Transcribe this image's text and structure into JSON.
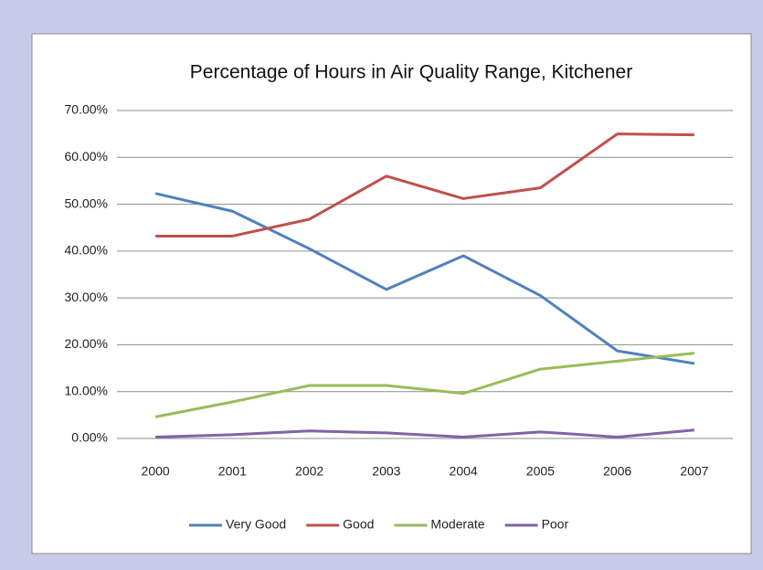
{
  "chart_data": {
    "type": "line",
    "title": "Percentage of Hours in Air Quality Range, Kitchener",
    "categories": [
      "2000",
      "2001",
      "2002",
      "2003",
      "2004",
      "2005",
      "2006",
      "2007"
    ],
    "series": [
      {
        "name": "Very Good",
        "color": "#4f81bd",
        "values": [
          52.3,
          48.5,
          40.5,
          31.8,
          39.0,
          30.5,
          18.7,
          16.0
        ]
      },
      {
        "name": "Good",
        "color": "#c0504d",
        "values": [
          43.2,
          43.2,
          46.8,
          56.0,
          51.2,
          53.5,
          65.0,
          64.8
        ]
      },
      {
        "name": "Moderate",
        "color": "#9bbb59",
        "values": [
          4.6,
          7.8,
          11.3,
          11.3,
          9.6,
          14.8,
          16.5,
          18.2
        ]
      },
      {
        "name": "Poor",
        "color": "#8064a2",
        "values": [
          0.3,
          0.8,
          1.6,
          1.2,
          0.3,
          1.4,
          0.3,
          1.8
        ]
      }
    ],
    "ylim": [
      0,
      70
    ],
    "yticks": [
      {
        "value": 0,
        "label": "0.00%"
      },
      {
        "value": 10,
        "label": "10.00%"
      },
      {
        "value": 20,
        "label": "20.00%"
      },
      {
        "value": 30,
        "label": "30.00%"
      },
      {
        "value": 40,
        "label": "40.00%"
      },
      {
        "value": 50,
        "label": "50.00%"
      },
      {
        "value": 60,
        "label": "60.00%"
      },
      {
        "value": 70,
        "label": "70.00%"
      }
    ],
    "grid": true,
    "legend": "bottom"
  }
}
